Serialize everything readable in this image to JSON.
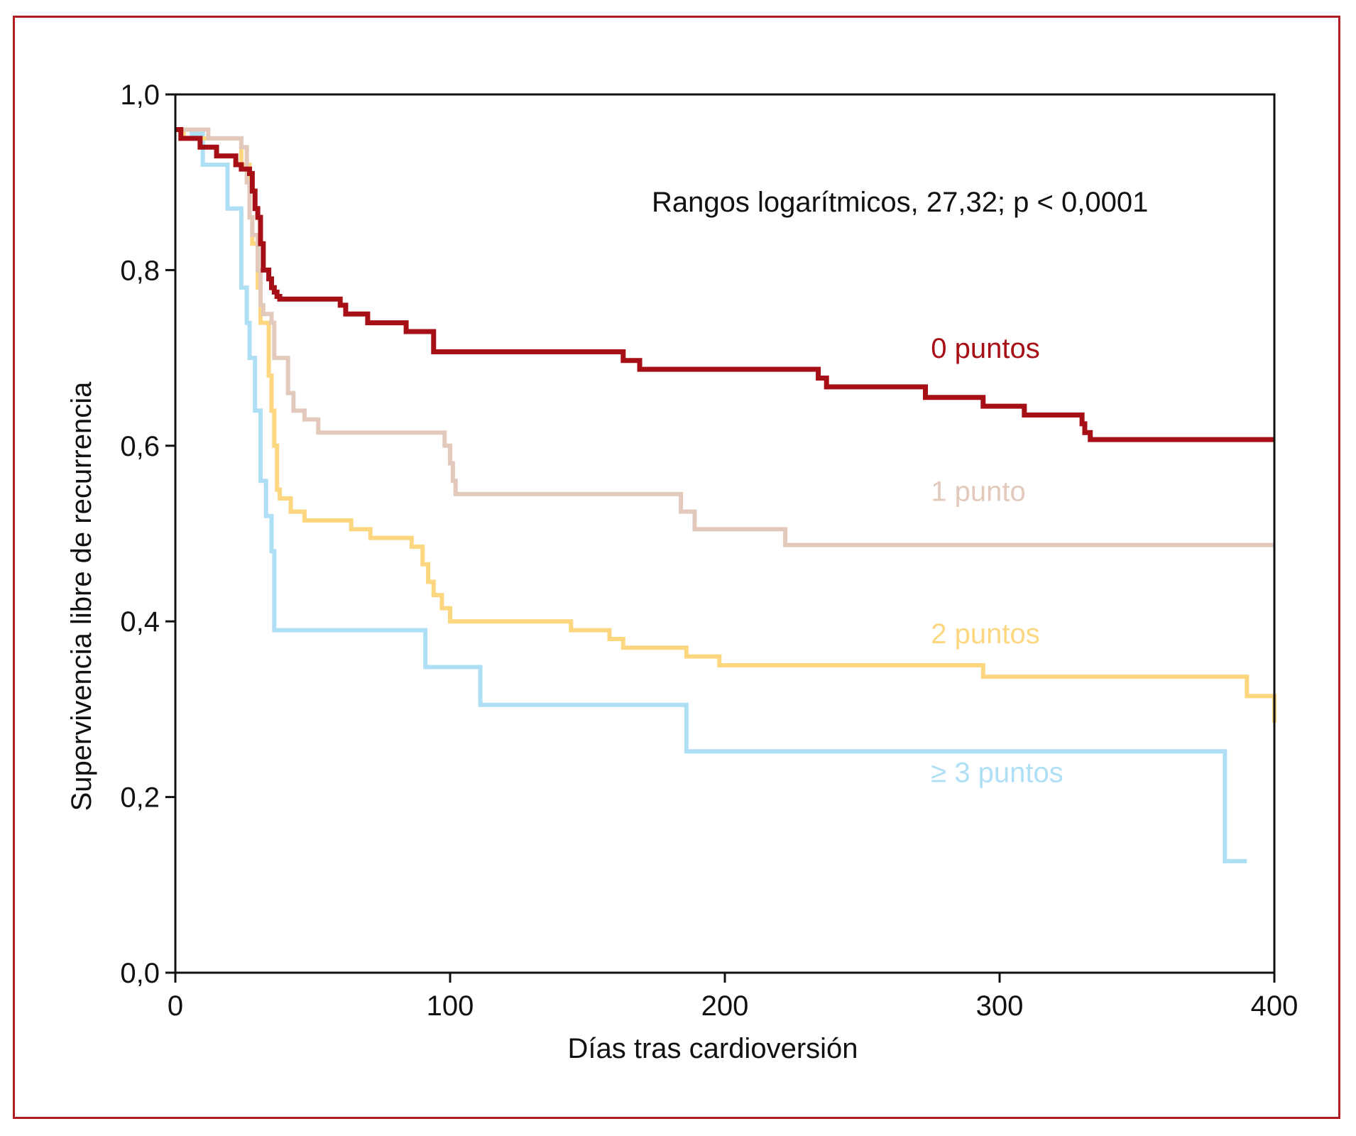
{
  "chart_data": {
    "type": "line",
    "step": true,
    "title": "",
    "annotation": "Rangos logarítmicos, 27,32; p < 0,0001",
    "xlabel": "Días tras cardioversión",
    "ylabel": "Supervivencia libre de recurrencia",
    "xlim": [
      0,
      400
    ],
    "ylim": [
      0,
      1
    ],
    "xticks": [
      0,
      100,
      200,
      300,
      400
    ],
    "xtick_labels": [
      "0",
      "100",
      "200",
      "300",
      "400"
    ],
    "yticks": [
      0,
      0.2,
      0.4,
      0.6,
      0.8,
      1.0
    ],
    "ytick_labels": [
      "0,0",
      "0,2",
      "0,4",
      "0,6",
      "0,8",
      "1,0"
    ],
    "grid": false,
    "legend": "inline labels at right",
    "series": [
      {
        "name": "0 puntos",
        "color": "#a50f15",
        "x": [
          0,
          2,
          9,
          15,
          22,
          24,
          27,
          28,
          29,
          30,
          31,
          32,
          34,
          35,
          36,
          37,
          38,
          60,
          62,
          70,
          84,
          94,
          163,
          169,
          234,
          237,
          273,
          294,
          309,
          330,
          331,
          333,
          400
        ],
        "y": [
          0.96,
          0.95,
          0.94,
          0.93,
          0.92,
          0.915,
          0.91,
          0.89,
          0.87,
          0.86,
          0.83,
          0.8,
          0.79,
          0.78,
          0.775,
          0.77,
          0.767,
          0.76,
          0.75,
          0.74,
          0.73,
          0.707,
          0.697,
          0.687,
          0.677,
          0.667,
          0.655,
          0.645,
          0.635,
          0.625,
          0.615,
          0.607,
          0.607
        ]
      },
      {
        "name": "1 punto",
        "color": "#e2c9bb",
        "x": [
          0,
          12,
          24,
          26,
          27,
          28,
          30,
          31,
          32,
          35,
          36,
          41,
          43,
          47,
          52,
          98,
          100,
          101,
          102,
          184,
          189,
          222,
          400
        ],
        "y": [
          0.96,
          0.95,
          0.94,
          0.9,
          0.86,
          0.84,
          0.8,
          0.76,
          0.75,
          0.74,
          0.7,
          0.66,
          0.64,
          0.63,
          0.615,
          0.6,
          0.58,
          0.56,
          0.545,
          0.525,
          0.505,
          0.487,
          0.487
        ]
      },
      {
        "name": "2 puntos",
        "color": "#fcd77f",
        "x": [
          0,
          3,
          24,
          27,
          28,
          30,
          31,
          34,
          35,
          36,
          37,
          38,
          42,
          47,
          64,
          71,
          86,
          90,
          92,
          94,
          97,
          100,
          144,
          158,
          163,
          186,
          198,
          294,
          390,
          400
        ],
        "y": [
          0.96,
          0.95,
          0.92,
          0.86,
          0.83,
          0.78,
          0.74,
          0.68,
          0.64,
          0.6,
          0.55,
          0.54,
          0.525,
          0.515,
          0.505,
          0.495,
          0.485,
          0.465,
          0.445,
          0.43,
          0.415,
          0.4,
          0.39,
          0.38,
          0.37,
          0.36,
          0.35,
          0.337,
          0.315,
          0.285
        ]
      },
      {
        "name": "≥ 3 puntos",
        "color": "#aedff5",
        "x": [
          0,
          6,
          10,
          19,
          24,
          26,
          27,
          29,
          31,
          33,
          35,
          36,
          91,
          111,
          186,
          382,
          390
        ],
        "y": [
          0.96,
          0.955,
          0.92,
          0.87,
          0.78,
          0.74,
          0.7,
          0.64,
          0.56,
          0.52,
          0.48,
          0.39,
          0.348,
          0.305,
          0.252,
          0.127,
          0.127
        ]
      }
    ]
  },
  "series_labels": {
    "s0": {
      "text": "0 puntos",
      "x": 275,
      "y": 0.7
    },
    "s1": {
      "text": "1 punto",
      "x": 275,
      "y": 0.537
    },
    "s2": {
      "text": "2 puntos",
      "x": 275,
      "y": 0.375
    },
    "s3": {
      "text": "≥ 3 puntos",
      "x": 275,
      "y": 0.217
    }
  }
}
